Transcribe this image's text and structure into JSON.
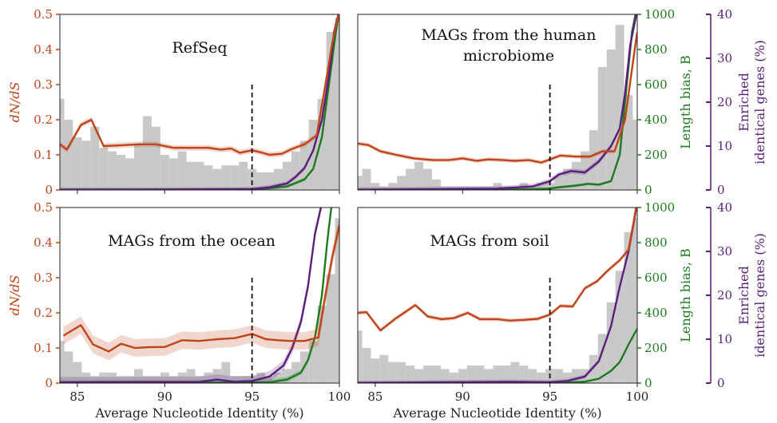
{
  "figure": {
    "xlabel": "Average Nucleotide Identity (%)",
    "dnds_label": "dN/dS",
    "length_bias_label": "Length bias, B",
    "enriched_label_line1": "Enriched",
    "enriched_label_line2": "identical genes (%)",
    "threshold_ani": 95,
    "colors": {
      "dnds": "#c0441a",
      "length_bias": "#1e7a1e",
      "enriched": "#5a1f7a",
      "histogram": "#c8c8c8",
      "threshold": "#111111"
    },
    "x_ticks": [
      "85",
      "90",
      "95",
      "100"
    ],
    "dnds_ticks": [
      "0",
      "0.1",
      "0.2",
      "0.3",
      "0.4",
      "0.5"
    ],
    "length_ticks": [
      "0",
      "200",
      "400",
      "600",
      "800",
      "1000"
    ],
    "enriched_ticks": [
      "0",
      "10",
      "20",
      "30",
      "40"
    ]
  },
  "chart_data": [
    {
      "type": "line",
      "title": "RefSeq",
      "xlim": [
        84,
        100
      ],
      "ylim": [
        0,
        0.5
      ],
      "x": [
        84,
        84.5,
        85,
        85.5,
        86,
        86.5,
        87,
        87.5,
        88,
        88.5,
        89,
        89.5,
        90,
        90.5,
        91,
        91.5,
        92,
        92.5,
        93,
        93.5,
        94,
        94.5,
        95,
        95.5,
        96,
        96.5,
        97,
        97.5,
        98,
        98.5,
        99,
        99.5,
        100
      ],
      "histogram": [
        0.26,
        0.2,
        0.15,
        0.14,
        0.18,
        0.12,
        0.11,
        0.1,
        0.09,
        0.13,
        0.21,
        0.18,
        0.1,
        0.09,
        0.11,
        0.08,
        0.08,
        0.07,
        0.06,
        0.07,
        0.07,
        0.08,
        0.06,
        0.05,
        0.05,
        0.06,
        0.08,
        0.11,
        0.14,
        0.2,
        0.26,
        0.45,
        0.49
      ],
      "series": [
        {
          "name": "dN/dS",
          "axis": "dnds",
          "band": 0.008,
          "points": [
            [
              84,
              0.13
            ],
            [
              84.4,
              0.115
            ],
            [
              85.2,
              0.185
            ],
            [
              85.8,
              0.2
            ],
            [
              86.5,
              0.125
            ],
            [
              87.5,
              0.127
            ],
            [
              88.5,
              0.13
            ],
            [
              89.5,
              0.13
            ],
            [
              90.5,
              0.12
            ],
            [
              91.5,
              0.12
            ],
            [
              92.5,
              0.12
            ],
            [
              93.2,
              0.115
            ],
            [
              93.8,
              0.118
            ],
            [
              94.3,
              0.106
            ],
            [
              95,
              0.113
            ],
            [
              95.5,
              0.107
            ],
            [
              96,
              0.1
            ],
            [
              96.7,
              0.103
            ],
            [
              97.3,
              0.117
            ],
            [
              98,
              0.13
            ],
            [
              98.7,
              0.155
            ],
            [
              99.2,
              0.3
            ],
            [
              99.6,
              0.42
            ],
            [
              100,
              0.51
            ]
          ]
        },
        {
          "name": "Length bias, B",
          "axis": "length",
          "band": 10,
          "points": [
            [
              84,
              1
            ],
            [
              90,
              1
            ],
            [
              94,
              2
            ],
            [
              95,
              4
            ],
            [
              96,
              10
            ],
            [
              97,
              20
            ],
            [
              97.5,
              40
            ],
            [
              98,
              60
            ],
            [
              98.5,
              120
            ],
            [
              99,
              300
            ],
            [
              99.4,
              600
            ],
            [
              99.8,
              900
            ],
            [
              100,
              1020
            ]
          ]
        },
        {
          "name": "Enriched identical genes",
          "axis": "enriched",
          "band": 0.5,
          "points": [
            [
              84,
              0.05
            ],
            [
              90,
              0.1
            ],
            [
              95,
              0.2
            ],
            [
              96,
              0.6
            ],
            [
              97,
              1.5
            ],
            [
              97.5,
              3
            ],
            [
              98,
              5
            ],
            [
              98.5,
              9
            ],
            [
              99,
              16
            ],
            [
              99.4,
              26
            ],
            [
              99.7,
              36
            ],
            [
              100,
              41
            ]
          ]
        }
      ]
    },
    {
      "type": "line",
      "title": "MAGs from the human microbiome",
      "xlim": [
        84,
        100
      ],
      "ylim": [
        0,
        0.5
      ],
      "x": [
        84,
        84.5,
        85,
        85.5,
        86,
        86.5,
        87,
        87.5,
        88,
        88.5,
        89,
        89.5,
        90,
        90.5,
        91,
        91.5,
        92,
        92.5,
        93,
        93.5,
        94,
        94.5,
        95,
        95.5,
        96,
        96.5,
        97,
        97.5,
        98,
        98.5,
        99,
        99.5,
        100
      ],
      "histogram": [
        0.04,
        0.06,
        0.02,
        0.01,
        0.02,
        0.04,
        0.06,
        0.08,
        0.06,
        0.03,
        0.01,
        0.01,
        0.01,
        0.01,
        0.01,
        0.01,
        0.02,
        0.01,
        0.01,
        0.02,
        0.01,
        0.02,
        0.02,
        0.04,
        0.06,
        0.08,
        0.11,
        0.17,
        0.35,
        0.4,
        0.47,
        0.27,
        0.2
      ],
      "series": [
        {
          "name": "dN/dS",
          "axis": "dnds",
          "band": 0.006,
          "points": [
            [
              84,
              0.132
            ],
            [
              84.6,
              0.128
            ],
            [
              85.3,
              0.11
            ],
            [
              86.2,
              0.1
            ],
            [
              87.2,
              0.09
            ],
            [
              88.3,
              0.085
            ],
            [
              89.2,
              0.085
            ],
            [
              90,
              0.09
            ],
            [
              90.8,
              0.083
            ],
            [
              91.5,
              0.087
            ],
            [
              92.3,
              0.085
            ],
            [
              93,
              0.083
            ],
            [
              93.8,
              0.085
            ],
            [
              94.5,
              0.078
            ],
            [
              95,
              0.087
            ],
            [
              95.6,
              0.098
            ],
            [
              96.5,
              0.095
            ],
            [
              97.3,
              0.095
            ],
            [
              98,
              0.11
            ],
            [
              98.7,
              0.11
            ],
            [
              99.3,
              0.2
            ],
            [
              99.8,
              0.38
            ],
            [
              100,
              0.45
            ]
          ]
        },
        {
          "name": "Length bias, B",
          "axis": "length",
          "band": 8,
          "points": [
            [
              84,
              1
            ],
            [
              92,
              2
            ],
            [
              94,
              4
            ],
            [
              95,
              8
            ],
            [
              95.5,
              15
            ],
            [
              96.5,
              25
            ],
            [
              97.2,
              35
            ],
            [
              97.8,
              30
            ],
            [
              98.5,
              50
            ],
            [
              99,
              200
            ],
            [
              99.4,
              600
            ],
            [
              99.7,
              900
            ],
            [
              100,
              1050
            ]
          ]
        },
        {
          "name": "Enriched identical genes",
          "axis": "enriched",
          "band": 0.6,
          "points": [
            [
              84,
              0.05
            ],
            [
              92,
              0.3
            ],
            [
              94,
              0.8
            ],
            [
              95,
              2
            ],
            [
              95.5,
              3.5
            ],
            [
              96.2,
              4.3
            ],
            [
              97,
              4
            ],
            [
              97.8,
              6.5
            ],
            [
              98.5,
              10
            ],
            [
              99,
              14
            ],
            [
              99.3,
              22
            ],
            [
              99.6,
              33
            ],
            [
              100,
              41
            ]
          ]
        }
      ]
    },
    {
      "type": "line",
      "title": "MAGs from the ocean",
      "xlim": [
        84,
        100
      ],
      "ylim": [
        0,
        0.5
      ],
      "x": [
        84,
        84.5,
        85,
        85.5,
        86,
        86.5,
        87,
        87.5,
        88,
        88.5,
        89,
        89.5,
        90,
        90.5,
        91,
        91.5,
        92,
        92.5,
        93,
        93.5,
        94,
        94.5,
        95,
        95.5,
        96,
        96.5,
        97,
        97.5,
        98,
        98.5,
        99,
        99.5,
        100
      ],
      "histogram": [
        0.12,
        0.09,
        0.06,
        0.03,
        0.02,
        0.03,
        0.03,
        0.02,
        0.02,
        0.04,
        0.02,
        0.02,
        0.03,
        0.02,
        0.03,
        0.04,
        0.02,
        0.03,
        0.04,
        0.06,
        0.02,
        0.02,
        0.02,
        0.03,
        0.02,
        0.03,
        0.04,
        0.06,
        0.09,
        0.12,
        0.22,
        0.31,
        0.47
      ],
      "series": [
        {
          "name": "dN/dS",
          "axis": "dnds",
          "band": 0.025,
          "points": [
            [
              84.2,
              0.135
            ],
            [
              84.7,
              0.15
            ],
            [
              85.2,
              0.165
            ],
            [
              85.9,
              0.11
            ],
            [
              86.8,
              0.09
            ],
            [
              87.5,
              0.112
            ],
            [
              88.3,
              0.1
            ],
            [
              89,
              0.102
            ],
            [
              90,
              0.103
            ],
            [
              91,
              0.122
            ],
            [
              92,
              0.12
            ],
            [
              93,
              0.125
            ],
            [
              94,
              0.128
            ],
            [
              95,
              0.14
            ],
            [
              95.8,
              0.125
            ],
            [
              96.5,
              0.122
            ],
            [
              97.2,
              0.12
            ],
            [
              98,
              0.12
            ],
            [
              98.8,
              0.13
            ],
            [
              99.2,
              0.25
            ],
            [
              99.6,
              0.36
            ],
            [
              100,
              0.45
            ]
          ]
        },
        {
          "name": "Length bias, B",
          "axis": "length",
          "band": 15,
          "points": [
            [
              84,
              1
            ],
            [
              94,
              3
            ],
            [
              96,
              5
            ],
            [
              97,
              20
            ],
            [
              97.8,
              60
            ],
            [
              98.2,
              130
            ],
            [
              98.6,
              260
            ],
            [
              99,
              500
            ],
            [
              99.3,
              800
            ],
            [
              99.6,
              1050
            ]
          ]
        },
        {
          "name": "Enriched identical genes",
          "axis": "enriched",
          "band": 1.2,
          "points": [
            [
              84,
              0.2
            ],
            [
              92,
              0.3
            ],
            [
              93,
              0.8
            ],
            [
              94,
              0.3
            ],
            [
              95,
              0.5
            ],
            [
              96,
              1.5
            ],
            [
              96.8,
              4
            ],
            [
              97.3,
              8
            ],
            [
              97.8,
              14
            ],
            [
              98.2,
              22
            ],
            [
              98.6,
              34
            ],
            [
              99,
              41
            ]
          ]
        }
      ]
    },
    {
      "type": "line",
      "title": "MAGs from soil",
      "xlim": [
        84,
        100
      ],
      "ylim": [
        0,
        0.5
      ],
      "x": [
        84,
        84.5,
        85,
        85.5,
        86,
        86.5,
        87,
        87.5,
        88,
        88.5,
        89,
        89.5,
        90,
        90.5,
        91,
        91.5,
        92,
        92.5,
        93,
        93.5,
        94,
        94.5,
        95,
        95.5,
        96,
        96.5,
        97,
        97.5,
        98,
        98.5,
        99,
        99.5,
        100
      ],
      "histogram": [
        0.15,
        0.1,
        0.07,
        0.08,
        0.06,
        0.06,
        0.05,
        0.04,
        0.05,
        0.05,
        0.04,
        0.03,
        0.04,
        0.05,
        0.05,
        0.04,
        0.05,
        0.05,
        0.06,
        0.05,
        0.04,
        0.03,
        0.04,
        0.04,
        0.03,
        0.04,
        0.04,
        0.08,
        0.14,
        0.23,
        0.32,
        0.43,
        0.47
      ],
      "series": [
        {
          "name": "dN/dS",
          "axis": "dnds",
          "band": 0.006,
          "points": [
            [
              84,
              0.2
            ],
            [
              84.5,
              0.202
            ],
            [
              85.3,
              0.15
            ],
            [
              86.2,
              0.185
            ],
            [
              87.3,
              0.222
            ],
            [
              88,
              0.19
            ],
            [
              88.8,
              0.182
            ],
            [
              89.5,
              0.185
            ],
            [
              90.3,
              0.2
            ],
            [
              91,
              0.182
            ],
            [
              92,
              0.182
            ],
            [
              92.7,
              0.178
            ],
            [
              93.5,
              0.18
            ],
            [
              94.3,
              0.183
            ],
            [
              95,
              0.195
            ],
            [
              95.6,
              0.22
            ],
            [
              96.3,
              0.218
            ],
            [
              97,
              0.27
            ],
            [
              97.7,
              0.29
            ],
            [
              98.3,
              0.32
            ],
            [
              99,
              0.35
            ],
            [
              99.5,
              0.38
            ],
            [
              99.8,
              0.46
            ],
            [
              100,
              0.52
            ]
          ]
        },
        {
          "name": "Length bias, B",
          "axis": "length",
          "band": 6,
          "points": [
            [
              84,
              1
            ],
            [
              94,
              2
            ],
            [
              96,
              3
            ],
            [
              97,
              8
            ],
            [
              97.8,
              25
            ],
            [
              98.5,
              70
            ],
            [
              99,
              120
            ],
            [
              99.5,
              220
            ],
            [
              100,
              310
            ]
          ]
        },
        {
          "name": "Enriched identical genes",
          "axis": "enriched",
          "band": 0.5,
          "points": [
            [
              84,
              0.05
            ],
            [
              93,
              0.3
            ],
            [
              95,
              0.2
            ],
            [
              96,
              0.5
            ],
            [
              97,
              1.5
            ],
            [
              97.8,
              5
            ],
            [
              98.5,
              13
            ],
            [
              99,
              22
            ],
            [
              99.5,
              30
            ],
            [
              100,
              41
            ]
          ]
        }
      ]
    }
  ]
}
